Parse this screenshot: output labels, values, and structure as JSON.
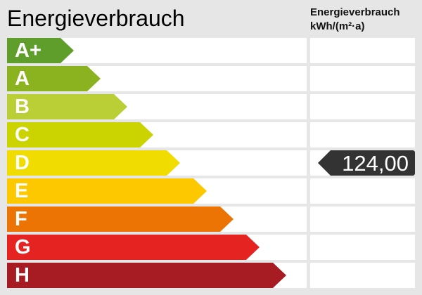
{
  "title": "Energieverbrauch",
  "column_header": {
    "line1": "Energieverbrauch",
    "line2": "kWh/(m²·a)"
  },
  "classes": [
    {
      "label": "A+",
      "color": "#5f9e2b"
    },
    {
      "label": "A",
      "color": "#8ab31f"
    },
    {
      "label": "B",
      "color": "#b9cf35"
    },
    {
      "label": "C",
      "color": "#cbd300"
    },
    {
      "label": "D",
      "color": "#f1dc00"
    },
    {
      "label": "E",
      "color": "#fdc800"
    },
    {
      "label": "F",
      "color": "#ec7404"
    },
    {
      "label": "G",
      "color": "#e52421"
    },
    {
      "label": "H",
      "color": "#a71b23"
    }
  ],
  "value": {
    "text": "124,00",
    "class": "D",
    "badge_color": "#333333"
  }
}
